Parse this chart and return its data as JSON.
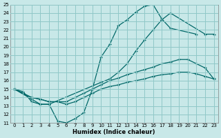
{
  "xlabel": "Humidex (Indice chaleur)",
  "bg_color": "#c8e8e8",
  "grid_color": "#90c8c8",
  "line_color": "#006868",
  "xlim": [
    -0.5,
    23.5
  ],
  "ylim": [
    11,
    25
  ],
  "xticks": [
    0,
    1,
    2,
    3,
    4,
    5,
    6,
    7,
    8,
    9,
    10,
    11,
    12,
    13,
    14,
    15,
    16,
    17,
    18,
    19,
    20,
    21,
    22,
    23
  ],
  "yticks": [
    11,
    12,
    13,
    14,
    15,
    16,
    17,
    18,
    19,
    20,
    21,
    22,
    23,
    24,
    25
  ],
  "line1_x": [
    0,
    1,
    2,
    3,
    4,
    5,
    6,
    7,
    8,
    9,
    10,
    11,
    12,
    13,
    14,
    15,
    16,
    17,
    18,
    21
  ],
  "line1_y": [
    15,
    14.7,
    13.5,
    13.2,
    13.2,
    11.2,
    11.0,
    11.5,
    12.2,
    15.0,
    18.8,
    20.3,
    22.5,
    23.2,
    24.1,
    24.8,
    25.0,
    23.3,
    22.2,
    21.5
  ],
  "line2_x": [
    0,
    2,
    3,
    4,
    10,
    11,
    12,
    13,
    14,
    15,
    16,
    17,
    18,
    22,
    23
  ],
  "line2_y": [
    15,
    13.8,
    13.2,
    13.2,
    15.8,
    16.2,
    17.0,
    18.0,
    19.5,
    20.8,
    22.0,
    23.2,
    24.0,
    21.5,
    21.5
  ],
  "line3_x": [
    0,
    2,
    3,
    4,
    5,
    6,
    7,
    8,
    9,
    10,
    11,
    12,
    13,
    14,
    15,
    16,
    17,
    18,
    19,
    20,
    21,
    22,
    23
  ],
  "line3_y": [
    15,
    14.0,
    13.8,
    13.5,
    13.5,
    13.5,
    14.0,
    14.5,
    15.0,
    15.5,
    16.0,
    16.3,
    16.7,
    17.0,
    17.3,
    17.6,
    18.0,
    18.2,
    18.5,
    18.5,
    18.0,
    17.5,
    16.2
  ],
  "line4_x": [
    0,
    2,
    3,
    4,
    5,
    6,
    7,
    8,
    9,
    10,
    11,
    12,
    13,
    14,
    15,
    16,
    17,
    18,
    19,
    20,
    21,
    22,
    23
  ],
  "line4_y": [
    15,
    14.0,
    13.8,
    13.5,
    13.5,
    13.2,
    13.5,
    14.0,
    14.5,
    15.0,
    15.3,
    15.5,
    15.8,
    16.0,
    16.2,
    16.5,
    16.7,
    16.8,
    17.0,
    17.0,
    16.8,
    16.5,
    16.2
  ]
}
